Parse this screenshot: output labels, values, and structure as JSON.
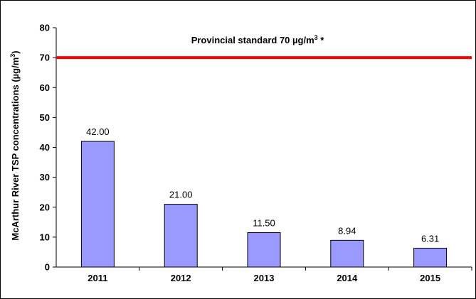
{
  "chart_data": {
    "type": "bar",
    "title": "",
    "xlabel": "",
    "ylabel": "McArthur River TSP concentrations (µg/m³)",
    "ylabel_main": "McArthur River TSP concentrations (µg/m",
    "ylabel_sup": "3",
    "ylabel_end": ")",
    "categories": [
      "2011",
      "2012",
      "2013",
      "2014",
      "2015"
    ],
    "values": [
      42.0,
      21.0,
      11.5,
      8.94,
      6.31
    ],
    "data_labels": [
      "42.00",
      "21.00",
      "11.50",
      "8.94",
      "6.31"
    ],
    "ylim": [
      0,
      80
    ],
    "yticks": [
      "0",
      "10",
      "20",
      "30",
      "40",
      "50",
      "60",
      "70",
      "80"
    ],
    "grid": false,
    "bar_color": "#9999ff",
    "reference_line": {
      "value": 70,
      "color": "#ff0000",
      "label_main": "Provincial standard 70 µg/m",
      "label_sup": "3",
      "label_end": " *"
    }
  }
}
